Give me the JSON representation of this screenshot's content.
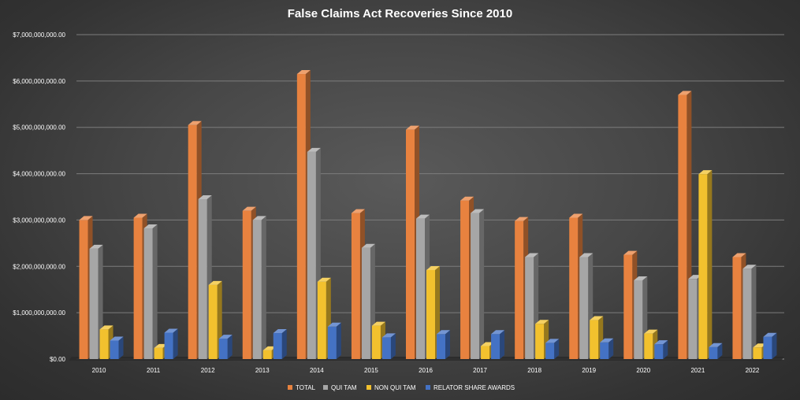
{
  "chart_data": {
    "type": "bar",
    "title": "False Claims Act Recoveries Since 2010",
    "xlabel": "",
    "ylabel": "",
    "ylim": [
      0,
      7000000000
    ],
    "y_ticks": [
      0,
      1000000000,
      2000000000,
      3000000000,
      4000000000,
      5000000000,
      6000000000,
      7000000000
    ],
    "y_tick_labels": [
      "$0.00",
      "$1,000,000,000.00",
      "$2,000,000,000.00",
      "$3,000,000,000.00",
      "$4,000,000,000.00",
      "$5,000,000,000.00",
      "$6,000,000,000.00",
      "$7,000,000,000.00"
    ],
    "grid": true,
    "legend_position": "bottom",
    "categories": [
      "2010",
      "2011",
      "2012",
      "2013",
      "2014",
      "2015",
      "2016",
      "2017",
      "2018",
      "2019",
      "2020",
      "2021",
      "2022"
    ],
    "series": [
      {
        "name": "TOTAL",
        "color": "#e8823f",
        "values": [
          3000000000,
          3050000000,
          5050000000,
          3200000000,
          6150000000,
          3150000000,
          4950000000,
          3420000000,
          2980000000,
          3050000000,
          2250000000,
          5700000000,
          2200000000
        ]
      },
      {
        "name": "QUI TAM",
        "color": "#a6a6a6",
        "values": [
          2380000000,
          2820000000,
          3450000000,
          3000000000,
          4470000000,
          2400000000,
          3030000000,
          3150000000,
          2200000000,
          2200000000,
          1700000000,
          1730000000,
          1950000000
        ]
      },
      {
        "name": "NON QUI TAM",
        "color": "#f2c12e",
        "values": [
          640000000,
          240000000,
          1600000000,
          190000000,
          1670000000,
          720000000,
          1920000000,
          280000000,
          760000000,
          840000000,
          550000000,
          3990000000,
          250000000
        ]
      },
      {
        "name": "RELATOR SHARE AWARDS",
        "color": "#4472c4",
        "values": [
          400000000,
          570000000,
          440000000,
          560000000,
          700000000,
          470000000,
          540000000,
          540000000,
          350000000,
          360000000,
          320000000,
          260000000,
          480000000
        ]
      }
    ]
  }
}
